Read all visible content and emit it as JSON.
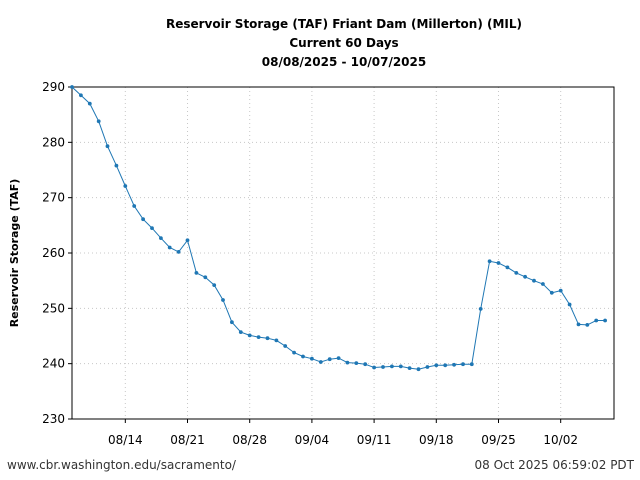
{
  "chart_data": {
    "type": "line",
    "title_lines": [
      "Reservoir Storage (TAF) Friant Dam (Millerton) (MIL)",
      "Current 60 Days",
      "08/08/2025 - 10/07/2025"
    ],
    "xlabel": "",
    "ylabel": "Reservoir Storage (TAF)",
    "ylim": [
      230,
      290
    ],
    "yticks": [
      230,
      240,
      250,
      260,
      270,
      280,
      290
    ],
    "xlim_day_index": [
      0,
      61
    ],
    "xticks": [
      {
        "day": 6,
        "label": "08/14"
      },
      {
        "day": 13,
        "label": "08/21"
      },
      {
        "day": 20,
        "label": "08/28"
      },
      {
        "day": 27,
        "label": "09/04"
      },
      {
        "day": 34,
        "label": "09/11"
      },
      {
        "day": 41,
        "label": "09/18"
      },
      {
        "day": 48,
        "label": "09/25"
      },
      {
        "day": 55,
        "label": "10/02"
      }
    ],
    "grid": true,
    "color": "#1f77b4",
    "series": [
      {
        "name": "Reservoir Storage",
        "x_start_date": "08/08/2025",
        "values": [
          290.0,
          288.5,
          287.0,
          283.8,
          279.3,
          275.8,
          272.1,
          268.5,
          266.1,
          264.5,
          262.7,
          261.0,
          260.2,
          262.3,
          256.4,
          255.6,
          254.2,
          251.5,
          247.5,
          245.7,
          245.1,
          244.8,
          244.6,
          244.2,
          243.2,
          242.0,
          241.3,
          240.9,
          240.3,
          240.8,
          241.0,
          240.2,
          240.1,
          239.9,
          239.3,
          239.4,
          239.5,
          239.5,
          239.2,
          239.0,
          239.4,
          239.7,
          239.7,
          239.8,
          239.9,
          239.9,
          249.9,
          258.5,
          258.2,
          257.4,
          256.4,
          255.7,
          255.0,
          254.4,
          252.8,
          253.2,
          250.7,
          247.1,
          247.0,
          247.8,
          247.8
        ]
      }
    ]
  },
  "footer": {
    "left_text": "www.cbr.washington.edu/sacramento/",
    "right_text": "08 Oct 2025 06:59:02 PDT"
  }
}
